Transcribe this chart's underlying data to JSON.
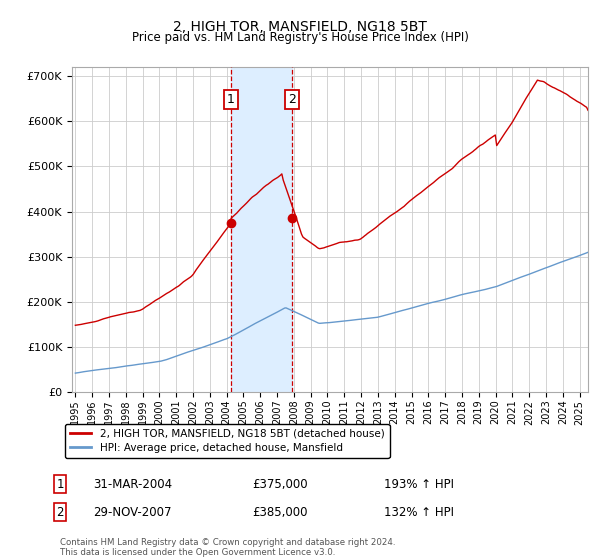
{
  "title": "2, HIGH TOR, MANSFIELD, NG18 5BT",
  "subtitle": "Price paid vs. HM Land Registry's House Price Index (HPI)",
  "ylim": [
    0,
    720000
  ],
  "yticks": [
    0,
    100000,
    200000,
    300000,
    400000,
    500000,
    600000,
    700000
  ],
  "ytick_labels": [
    "£0",
    "£100K",
    "£200K",
    "£300K",
    "£400K",
    "£500K",
    "£600K",
    "£700K"
  ],
  "sale1_date_num": 2004.25,
  "sale2_date_num": 2007.91,
  "sale1_price": 375000,
  "sale2_price": 385000,
  "sale1_info": "31-MAR-2004",
  "sale1_price_str": "£375,000",
  "sale1_hpi": "193% ↑ HPI",
  "sale2_info": "29-NOV-2007",
  "sale2_price_str": "£385,000",
  "sale2_hpi": "132% ↑ HPI",
  "legend1": "2, HIGH TOR, MANSFIELD, NG18 5BT (detached house)",
  "legend2": "HPI: Average price, detached house, Mansfield",
  "line1_color": "#cc0000",
  "line2_color": "#6699cc",
  "shade_color": "#ddeeff",
  "footnote": "Contains HM Land Registry data © Crown copyright and database right 2024.\nThis data is licensed under the Open Government Licence v3.0.",
  "xlim_left": 1994.8,
  "xlim_right": 2025.5,
  "xtick_years": [
    1995,
    1996,
    1997,
    1998,
    1999,
    2000,
    2001,
    2002,
    2003,
    2004,
    2005,
    2006,
    2007,
    2008,
    2009,
    2010,
    2011,
    2012,
    2013,
    2014,
    2015,
    2016,
    2017,
    2018,
    2019,
    2020,
    2021,
    2022,
    2023,
    2024,
    2025
  ]
}
